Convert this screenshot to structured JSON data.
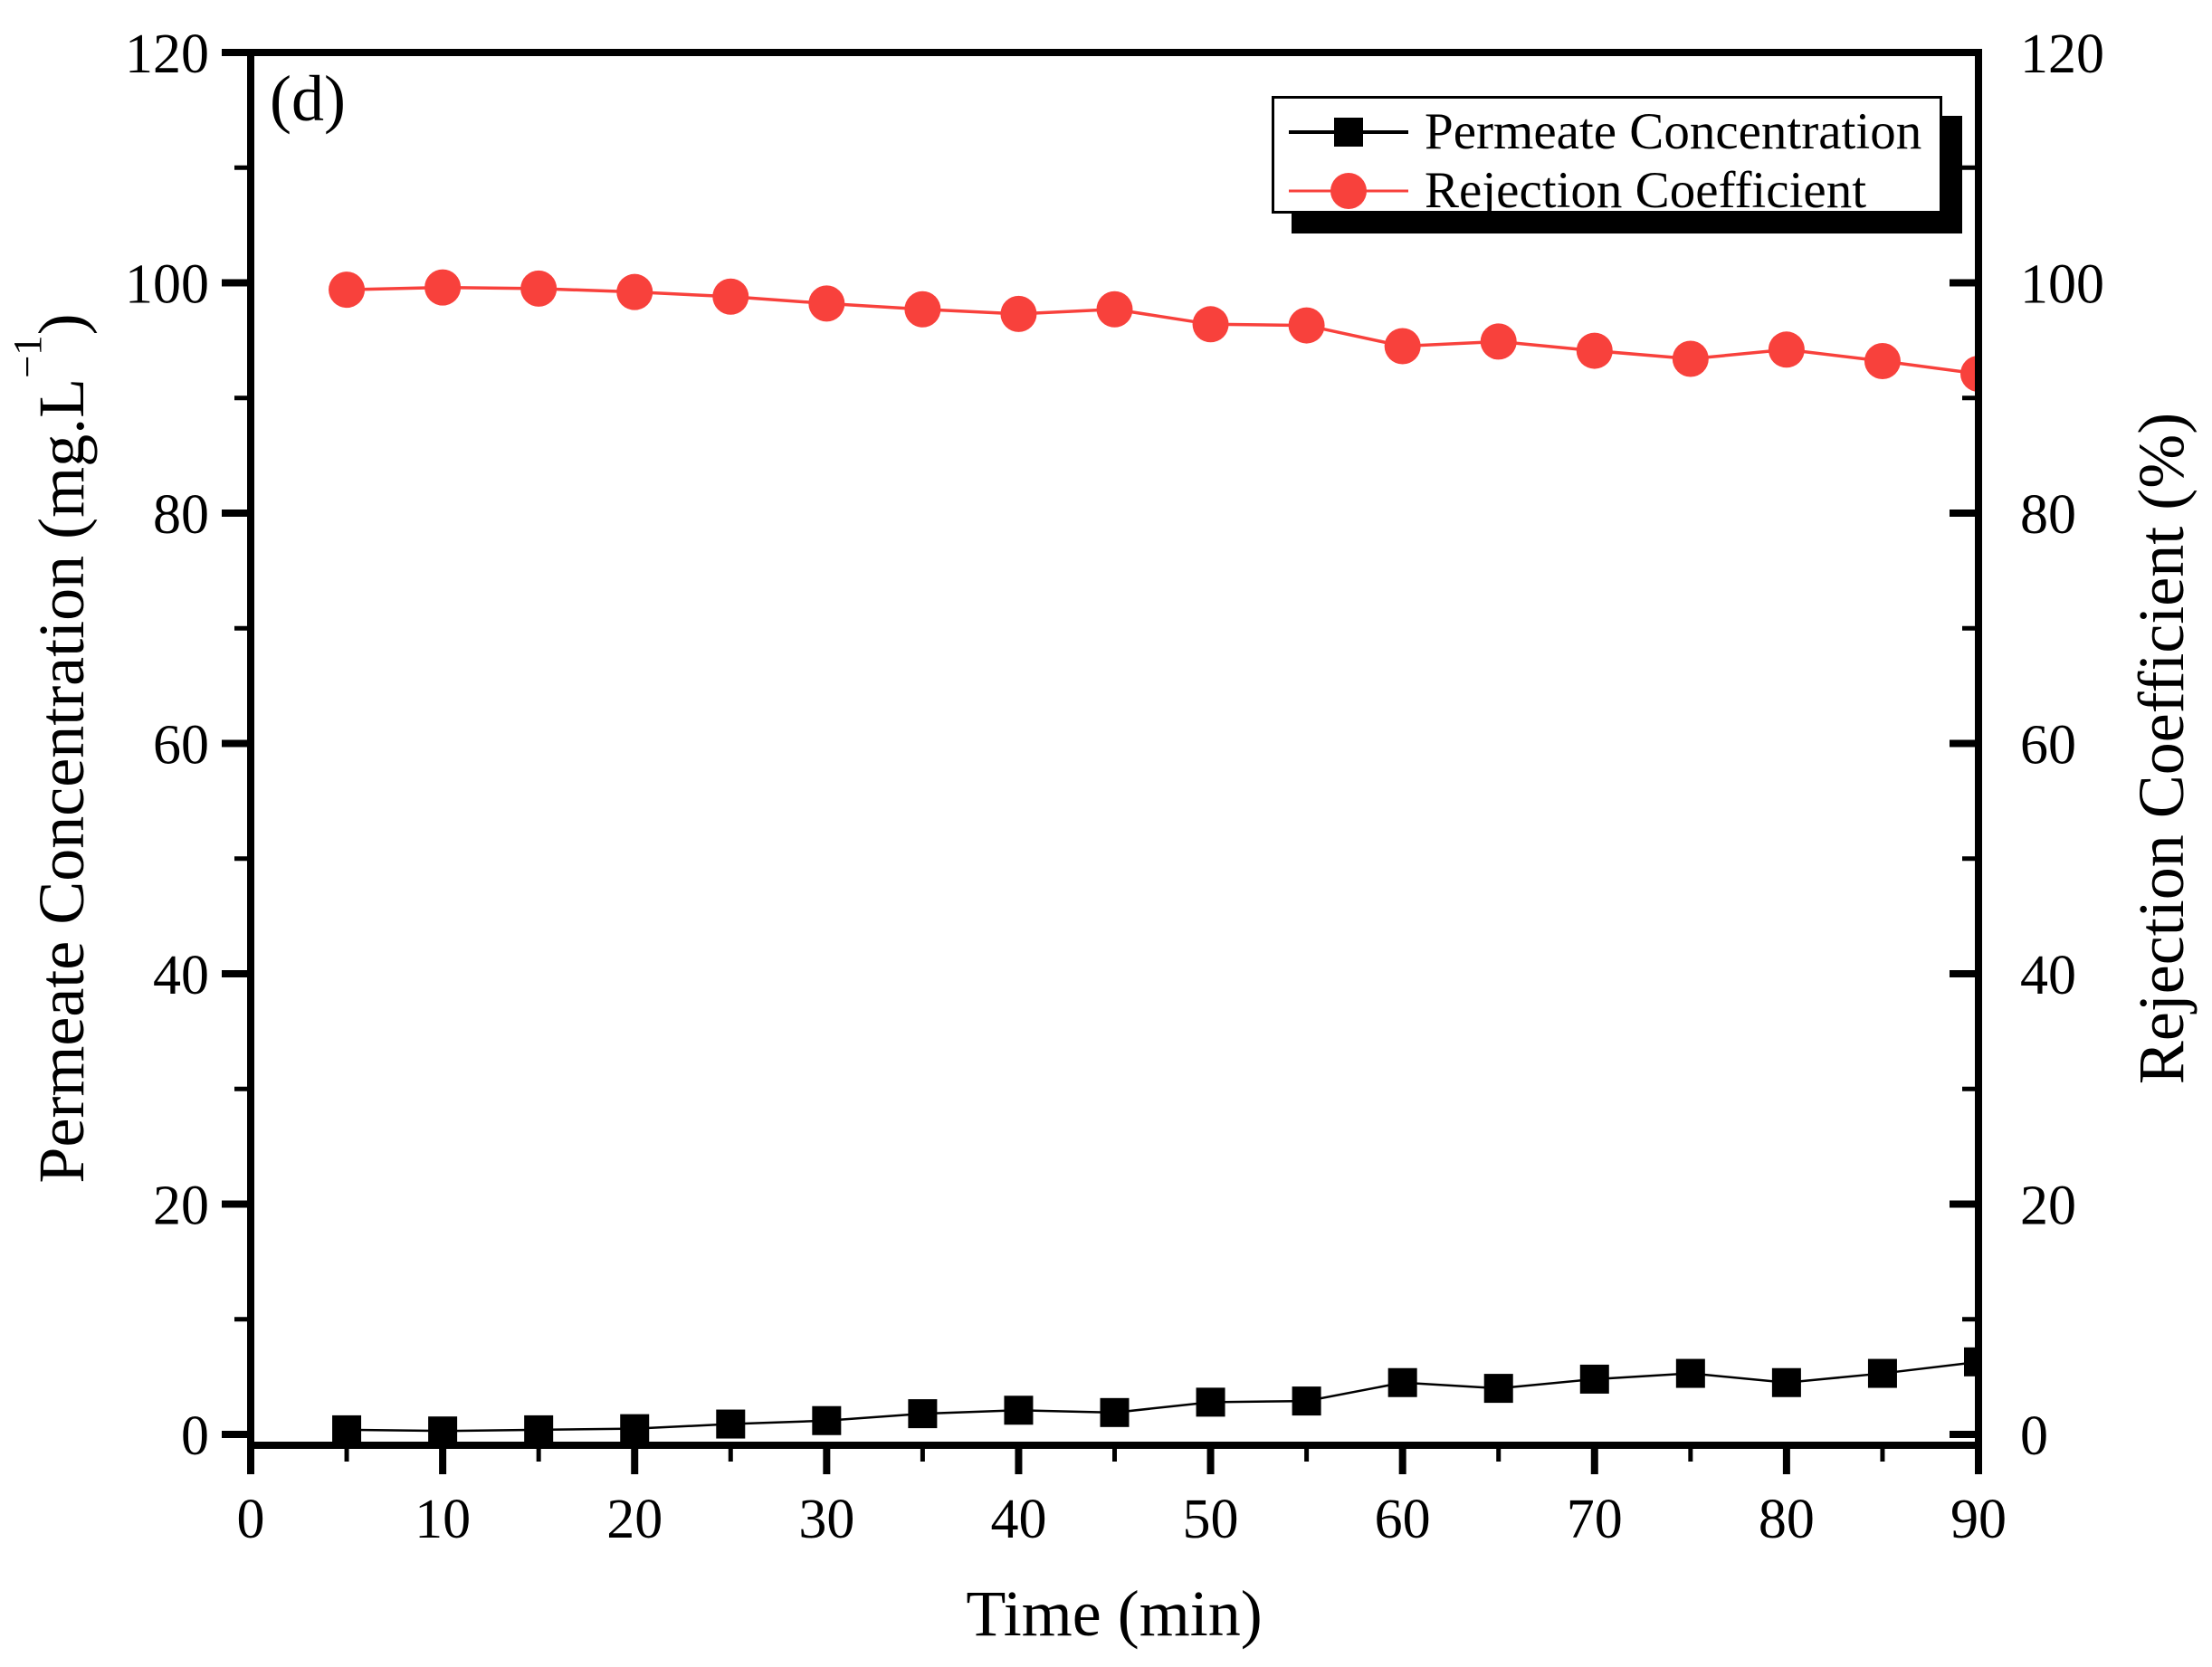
{
  "figure": {
    "panel_label": "(d)",
    "background_color": "#ffffff",
    "accent_red": "#F8413C",
    "series_black": "#000000"
  },
  "axes": {
    "x": {
      "title": "Time (min)",
      "min": 0,
      "max": 90,
      "major_ticks": [
        0,
        10,
        20,
        30,
        40,
        50,
        60,
        70,
        80,
        90
      ],
      "minor_ticks": [
        5,
        15,
        25,
        35,
        45,
        55,
        65,
        75,
        85
      ]
    },
    "y_left": {
      "title_main": "Permeate Concentration (mg.L",
      "title_sup": "−1",
      "title_close": ")",
      "min": 0,
      "max": 120,
      "major_ticks": [
        0,
        20,
        40,
        60,
        80,
        100,
        120
      ],
      "minor_ticks": [
        10,
        30,
        50,
        70,
        90,
        110
      ]
    },
    "y_right": {
      "title": "Rejection Coefficient (%)",
      "min": 0,
      "max": 120,
      "major_ticks": [
        0,
        20,
        40,
        60,
        80,
        100,
        120
      ],
      "minor_ticks": [
        10,
        30,
        50,
        70,
        90,
        110
      ]
    }
  },
  "legend": {
    "position": "top-right",
    "items": [
      {
        "label": "Permeate Concentration",
        "marker": "square",
        "color": "#000000"
      },
      {
        "label": "Rejection Coefficient",
        "marker": "circle",
        "color": "#F8413C"
      }
    ]
  },
  "chart_data": {
    "type": "line",
    "title": "",
    "xlabel": "Time (min)",
    "ylabel_left": "Permeate Concentration (mg.L−1)",
    "ylabel_right": "Rejection Coefficient (%)",
    "xlim": [
      0,
      90
    ],
    "ylim": [
      0,
      120
    ],
    "grid": false,
    "legend_position": "top-right",
    "x": [
      5,
      10,
      15,
      20,
      25,
      30,
      35,
      40,
      45,
      50,
      55,
      60,
      65,
      70,
      75,
      80,
      85,
      90
    ],
    "series": [
      {
        "id": "permeate-concentration",
        "name": "Permeate Concentration",
        "axis": "left",
        "marker": "square",
        "color": "#000000",
        "line_width": 2.5,
        "values": [
          0.4,
          0.3,
          0.4,
          0.5,
          0.9,
          1.2,
          1.8,
          2.1,
          1.9,
          2.8,
          2.9,
          4.5,
          4.0,
          4.8,
          5.3,
          4.5,
          5.3,
          6.3
        ]
      },
      {
        "id": "rejection-coefficient",
        "name": "Rejection Coefficient",
        "axis": "right",
        "marker": "circle",
        "color": "#F8413C",
        "line_width": 3.5,
        "values": [
          99.4,
          99.6,
          99.5,
          99.2,
          98.8,
          98.2,
          97.7,
          97.3,
          97.7,
          96.4,
          96.3,
          94.5,
          94.9,
          94.1,
          93.4,
          94.2,
          93.2,
          92.1
        ]
      }
    ]
  }
}
